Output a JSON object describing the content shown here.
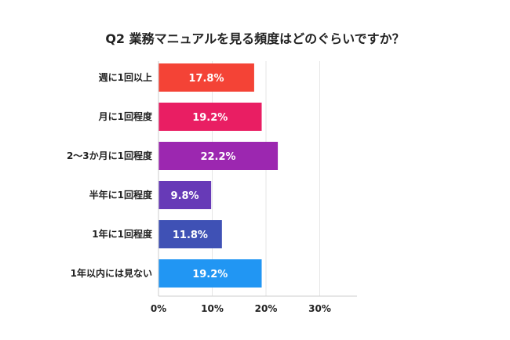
{
  "chart_data": {
    "type": "bar",
    "orientation": "horizontal",
    "title": "Q2 業務マニュアルを見る頻度はどのぐらいですか？",
    "categories": [
      "週に1回以上",
      "月に1回程度",
      "2〜3か月に1回程度",
      "半年に1回程度",
      "1年に1回程度",
      "1年以内には見ない"
    ],
    "values": [
      17.8,
      19.2,
      22.2,
      9.8,
      11.8,
      19.2
    ],
    "value_labels": [
      "17.8%",
      "19.2%",
      "22.2%",
      "9.8%",
      "11.8%",
      "19.2%"
    ],
    "colors": [
      "#f44336",
      "#e91e63",
      "#9c27b0",
      "#673ab7",
      "#3f51b5",
      "#2196f3"
    ],
    "xlim": [
      0,
      37
    ],
    "xticks": [
      0,
      10,
      20,
      30
    ],
    "xtick_labels": [
      "0%",
      "10%",
      "20%",
      "30%"
    ],
    "grid": true,
    "legend": "none"
  }
}
